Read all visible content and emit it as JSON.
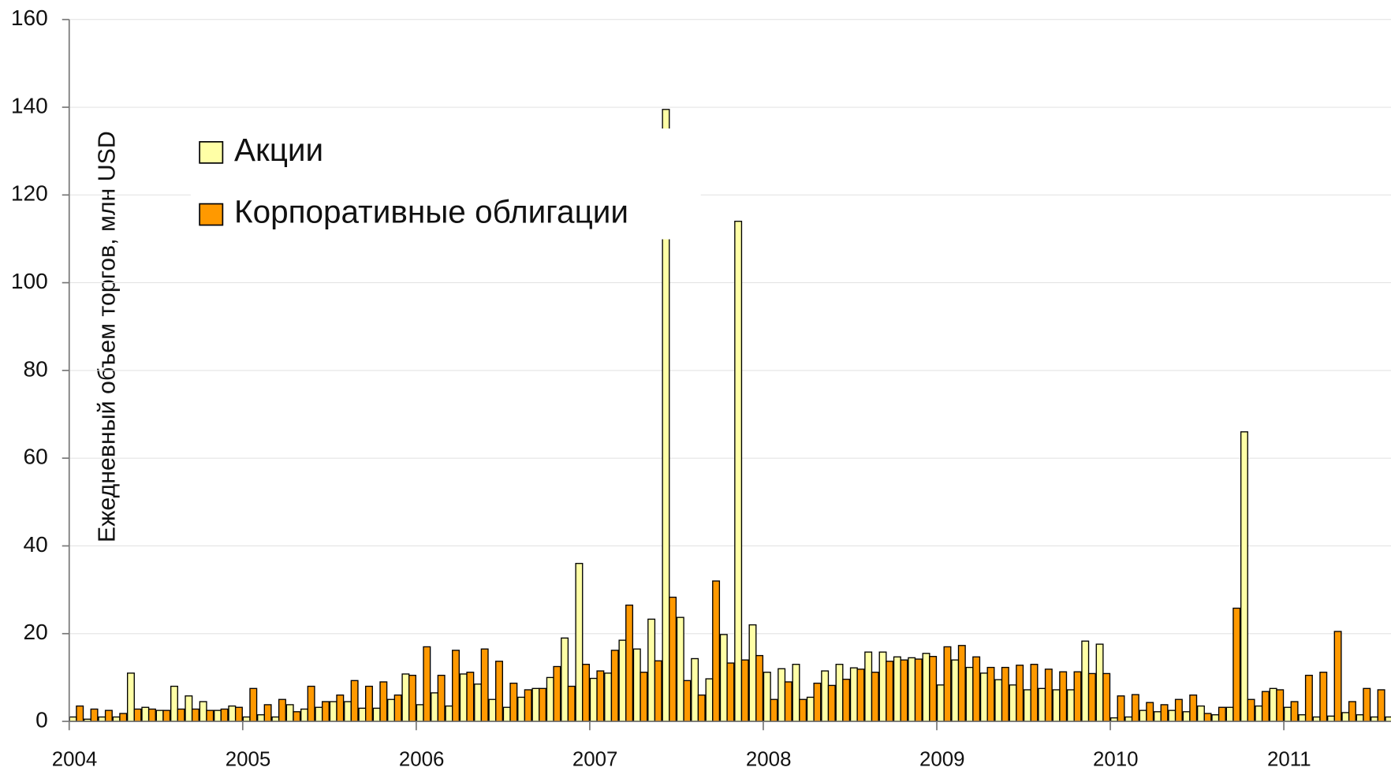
{
  "chart_data": {
    "type": "bar",
    "y_label": "Ежедневный объем торгов, млн USD",
    "categories": [
      "2004",
      null,
      null,
      null,
      null,
      null,
      null,
      null,
      null,
      null,
      null,
      null,
      "2005",
      null,
      null,
      null,
      null,
      null,
      null,
      null,
      null,
      null,
      null,
      null,
      "2006",
      null,
      null,
      null,
      null,
      null,
      null,
      null,
      null,
      null,
      null,
      null,
      "2007",
      null,
      null,
      null,
      null,
      null,
      null,
      null,
      null,
      null,
      null,
      null,
      "2008",
      null,
      null,
      null,
      null,
      null,
      null,
      null,
      null,
      null,
      null,
      null,
      "2009",
      null,
      null,
      null,
      null,
      null,
      null,
      null,
      null,
      null,
      null,
      null,
      "2010",
      null,
      null,
      null,
      null,
      null,
      null,
      null,
      null,
      null,
      null,
      null,
      "2011",
      null,
      null,
      null,
      null,
      null,
      null,
      null
    ],
    "series": [
      {
        "name": "Акции",
        "color": "#ffffa6",
        "values": [
          1,
          0.5,
          1,
          1,
          11,
          3.2,
          2.5,
          8,
          5.8,
          4.5,
          2.5,
          3.5,
          1,
          1.5,
          1,
          3.8,
          2.8,
          3.2,
          4.5,
          4.5,
          3,
          3,
          5,
          10.8,
          3.8,
          6.5,
          3.5,
          10.8,
          8.5,
          5,
          3.2,
          5.5,
          7.5,
          10,
          19,
          36,
          9.8,
          11,
          18.5,
          16.5,
          23.3,
          139.5,
          23.7,
          14.3,
          9.7,
          19.8,
          114,
          22,
          11.2,
          12,
          13,
          5.5,
          11.5,
          13,
          12.2,
          15.8,
          15.8,
          14.7,
          14.5,
          15.5,
          8.3,
          14,
          12.3,
          11,
          9.5,
          8.3,
          7.2,
          7.5,
          7.2,
          7.2,
          18.3,
          17.6,
          0.8,
          1,
          2.5,
          2.2,
          2.5,
          2.2,
          3.5,
          1.5,
          3.2,
          66,
          3.5,
          7.5,
          3.2,
          1.5,
          1,
          1.2,
          2,
          1.5,
          1,
          1
        ]
      },
      {
        "name": "Корпоративные облигации",
        "color": "#ff9900",
        "values": [
          3.5,
          2.8,
          2.5,
          1.8,
          2.8,
          2.8,
          2.5,
          2.8,
          2.8,
          2.5,
          2.8,
          3.2,
          7.5,
          3.8,
          5,
          2.2,
          8,
          4.5,
          6,
          9.3,
          8,
          9,
          6,
          10.5,
          17,
          10.5,
          16.2,
          11.2,
          16.5,
          13.7,
          8.7,
          7.2,
          7.5,
          12.5,
          8,
          13,
          11.5,
          16.2,
          26.5,
          11.2,
          13.8,
          28.3,
          9.3,
          6,
          32,
          13.3,
          14,
          15,
          5,
          9,
          5,
          8.7,
          8.2,
          9.6,
          11.9,
          11.2,
          13.7,
          14,
          14.2,
          14.8,
          17,
          17.3,
          14.7,
          12.3,
          12.3,
          12.8,
          13,
          11.9,
          11.3,
          11.3,
          10.9,
          10.9,
          5.8,
          6.1,
          4.3,
          3.8,
          5,
          6,
          1.8,
          3.2,
          25.8,
          5,
          6.8,
          7.2,
          4.5,
          10.5,
          11.2,
          20.5,
          4.5,
          7.5,
          7.2,
          4.5
        ]
      }
    ],
    "ylim": [
      0,
      160
    ],
    "yticks": [
      0,
      20,
      40,
      60,
      80,
      100,
      120,
      140,
      160
    ],
    "grid": true,
    "legend": "upper left"
  }
}
